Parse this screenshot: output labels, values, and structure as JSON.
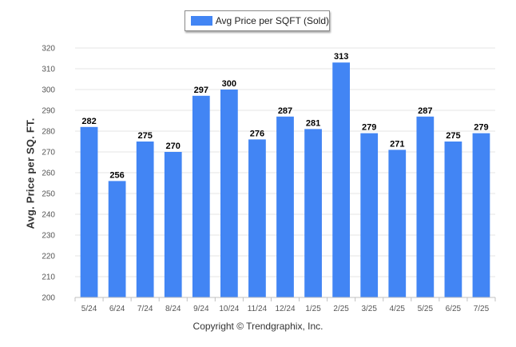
{
  "chart_data": {
    "type": "bar",
    "legend": "Avg Price per SQFT (Sold)",
    "legend_position": "top-center",
    "ylabel": "Avg. Price per SQ. FT.",
    "xlabel": "",
    "categories": [
      "5/24",
      "6/24",
      "7/24",
      "8/24",
      "9/24",
      "10/24",
      "11/24",
      "12/24",
      "1/25",
      "2/25",
      "3/25",
      "4/25",
      "5/25",
      "6/25",
      "7/25"
    ],
    "series": [
      {
        "name": "Avg Price per SQFT (Sold)",
        "values": [
          282,
          256,
          275,
          270,
          297,
          300,
          276,
          287,
          281,
          313,
          279,
          271,
          287,
          275,
          279
        ]
      }
    ],
    "ylim": [
      200,
      320
    ],
    "yticks": [
      200,
      210,
      220,
      230,
      240,
      250,
      260,
      270,
      280,
      290,
      300,
      310,
      320
    ],
    "grid": true,
    "bar_color": "#4285f4",
    "data_labels": true
  },
  "footer": {
    "copyright": "Copyright © Trendgraphix, Inc."
  }
}
